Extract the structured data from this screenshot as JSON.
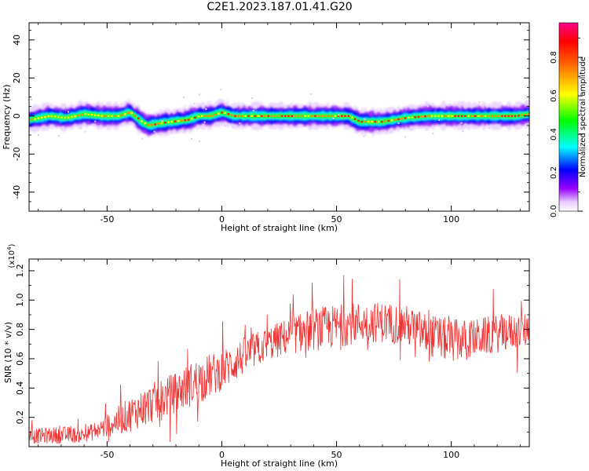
{
  "title": "C2E1.2023.187.01.41.G20",
  "chart_data": [
    {
      "type": "heatmap",
      "xlabel": "Height of straight line (km)",
      "ylabel": "Frequency (Hz)",
      "xlim": [
        -84,
        134
      ],
      "ylim": [
        -50,
        49
      ],
      "x_ticks": [
        -50,
        0,
        50,
        100
      ],
      "y_ticks": [
        -40,
        -20,
        0,
        20,
        40
      ],
      "colorbar": {
        "label": "Normalized spectral amplitude",
        "range": [
          0,
          0.98
        ],
        "ticks": [
          "0.0",
          "0.2",
          "0.4",
          "0.6",
          "0.8"
        ],
        "tick_values": [
          0,
          0.2,
          0.4,
          0.6,
          0.8
        ]
      },
      "ridge": {
        "x": [
          -84,
          -75,
          -68,
          -60,
          -52,
          -45,
          -40,
          -35,
          -32,
          -28,
          -22,
          -15,
          -10,
          -5,
          0,
          5,
          10,
          20,
          30,
          40,
          50,
          55,
          60,
          65,
          70,
          75,
          80,
          90,
          100,
          110,
          120,
          128,
          134
        ],
        "freq": [
          -2,
          0,
          -1,
          1,
          0,
          0,
          2,
          -3,
          -5,
          -4,
          -3,
          -2,
          0,
          0,
          2,
          0,
          0,
          0,
          0,
          0,
          0,
          0,
          -3,
          -3,
          -3,
          -2,
          -1,
          0,
          0,
          0,
          0,
          0,
          1
        ]
      }
    },
    {
      "type": "line",
      "xlabel": "Height of straight line (km)",
      "ylabel": "SNR (10 * v/v)",
      "y_multiplier": "(x10",
      "y_multiplier_exp": "4",
      "y_multiplier_close": ")",
      "xlim": [
        -84,
        134
      ],
      "ylim": [
        0,
        1.28
      ],
      "x_ticks": [
        -50,
        0,
        50,
        100
      ],
      "y_ticks": [
        0.2,
        0.4,
        0.6,
        0.8,
        1.0,
        1.2
      ],
      "y_tick_labels": [
        "0.2",
        "0.4",
        "0.6",
        "0.8",
        "1.0",
        "1.2"
      ],
      "color": "#ee3333",
      "envelope": {
        "x": [
          -84,
          -70,
          -60,
          -50,
          -40,
          -30,
          -20,
          -10,
          0,
          10,
          20,
          30,
          40,
          50,
          60,
          70,
          80,
          90,
          100,
          110,
          120,
          134
        ],
        "mean": [
          0.07,
          0.08,
          0.08,
          0.14,
          0.22,
          0.3,
          0.37,
          0.45,
          0.52,
          0.62,
          0.7,
          0.76,
          0.8,
          0.82,
          0.85,
          0.85,
          0.83,
          0.76,
          0.72,
          0.74,
          0.77,
          0.8
        ],
        "amp": [
          0.05,
          0.06,
          0.05,
          0.08,
          0.12,
          0.14,
          0.14,
          0.16,
          0.14,
          0.13,
          0.12,
          0.13,
          0.15,
          0.15,
          0.14,
          0.14,
          0.14,
          0.15,
          0.15,
          0.13,
          0.13,
          0.12
        ]
      }
    }
  ]
}
